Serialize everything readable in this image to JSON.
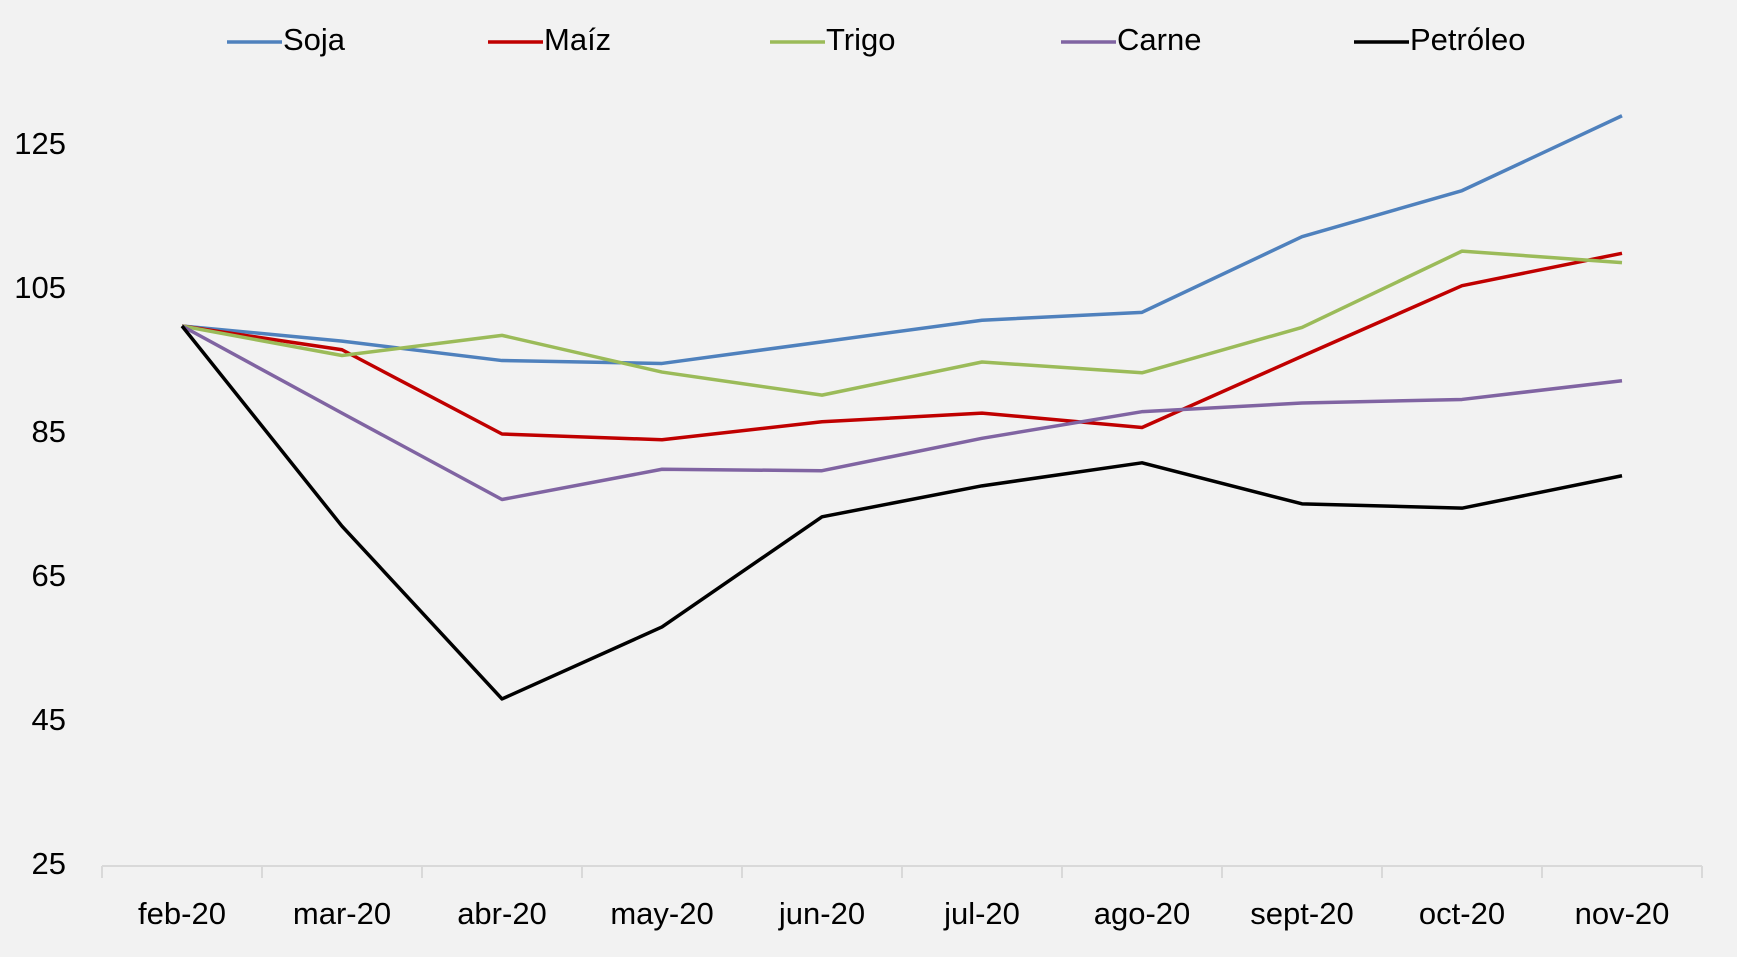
{
  "chart_data": {
    "type": "line",
    "categories": [
      "feb-20",
      "mar-20",
      "abr-20",
      "may-20",
      "jun-20",
      "jul-20",
      "ago-20",
      "sept-20",
      "oct-20",
      "nov-20"
    ],
    "series": [
      {
        "name": "Soja",
        "color": "#4f81bd",
        "values": [
          100,
          97.9,
          95.2,
          94.8,
          97.8,
          100.8,
          101.9,
          112.4,
          118.8,
          129.2
        ]
      },
      {
        "name": "Maíz",
        "color": "#c00000",
        "values": [
          100,
          96.7,
          85,
          84.2,
          86.7,
          87.9,
          85.9,
          95.8,
          105.6,
          110.1
        ]
      },
      {
        "name": "Trigo",
        "color": "#9bbb59",
        "values": [
          100,
          95.9,
          98.7,
          93.6,
          90.4,
          95,
          93.5,
          99.8,
          110.4,
          108.8
        ]
      },
      {
        "name": "Carne",
        "color": "#8064a2",
        "values": [
          100,
          87.9,
          75.9,
          80.1,
          79.9,
          84.4,
          88.1,
          89.3,
          89.8,
          92.4
        ]
      },
      {
        "name": "Petróleo",
        "color": "#000000",
        "values": [
          100,
          72.2,
          48.2,
          58.2,
          73.5,
          77.8,
          81,
          75.3,
          74.7,
          79.2
        ]
      }
    ],
    "ylim": [
      25,
      135
    ],
    "yticks": [
      25,
      45,
      65,
      85,
      105,
      125
    ],
    "grid": false,
    "legend": "top"
  }
}
